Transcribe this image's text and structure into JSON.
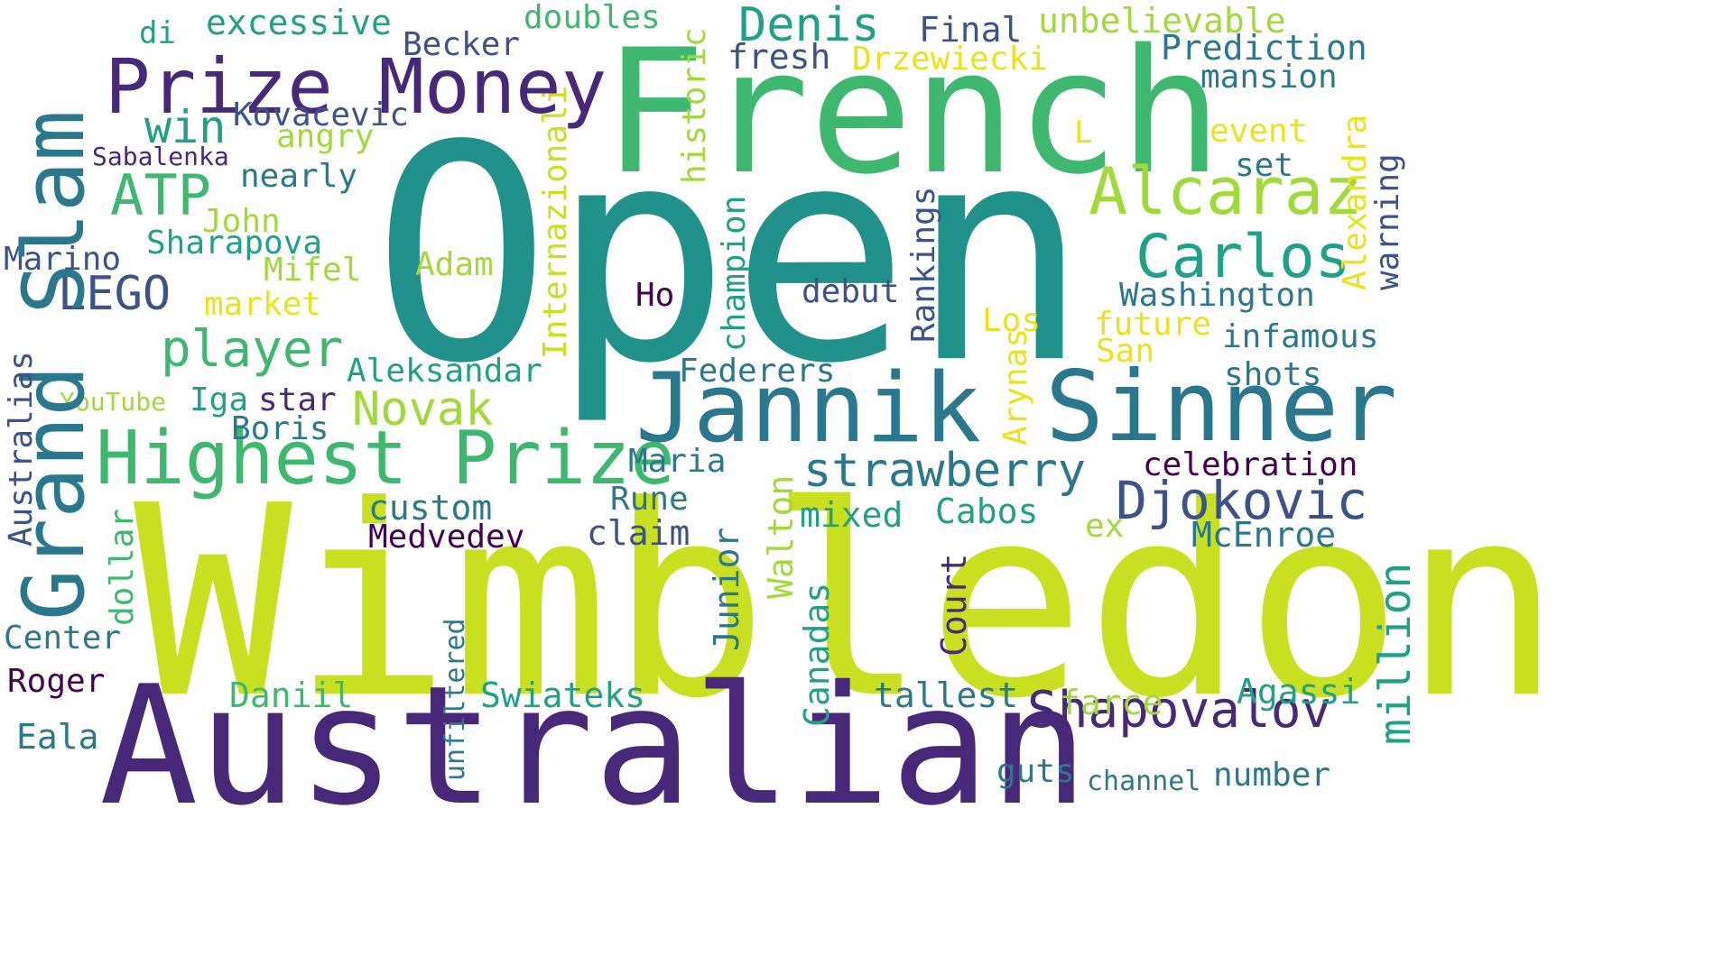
{
  "palette": {
    "yellow_green": "#c8e020",
    "teal": "#21918c",
    "dark_purple": "#482878",
    "green": "#3eb86e",
    "blue": "#2a788e",
    "slate": "#3b528b",
    "yellow": "#e8e419",
    "deep_purple": "#440154",
    "light_green": "#7ad151"
  },
  "words": [
    "Open",
    "Wimbledon",
    "Australian",
    "French",
    "Grand Slam",
    "Prize Money",
    "Jannik",
    "Sinner",
    "Highest Prize",
    "Alcaraz",
    "Carlos",
    "strawberry",
    "Djokovic",
    "Shapovalov",
    "ATP",
    "player",
    "Denis",
    "Novak",
    "LEGO",
    "win",
    "Prediction",
    "unbelievable",
    "excessive",
    "doubles",
    "Becker",
    "Final",
    "fresh",
    "Drzewiecki",
    "mansion",
    "Kovacevic",
    "angry",
    "Sabalenka",
    "nearly",
    "historic",
    "event",
    "set",
    "John",
    "Sharapova",
    "Marino",
    "Mifel",
    "Adam",
    "Washington",
    "debut",
    "Ho",
    "market",
    "future",
    "Los",
    "San",
    "infamous",
    "Aleksandar",
    "Federers",
    "shots",
    "YouTube",
    "Iga",
    "star",
    "Boris",
    "celebration",
    "Maria",
    "custom",
    "Rune",
    "mixed",
    "Cabos",
    "ex",
    "McEnroe",
    "Medvedev",
    "claim",
    "Center",
    "Roger",
    "Daniil",
    "Swiateks",
    "tallest",
    "farce",
    "Agassi",
    "Eala",
    "guts",
    "channel",
    "number",
    "di",
    "Internazionali",
    "champion",
    "Rankings",
    "Alexandra",
    "warning",
    "Arynas",
    "Walton",
    "Junior",
    "Court",
    "Canadas",
    "unfiltered",
    "dollar",
    "Australias",
    "million",
    "L"
  ]
}
